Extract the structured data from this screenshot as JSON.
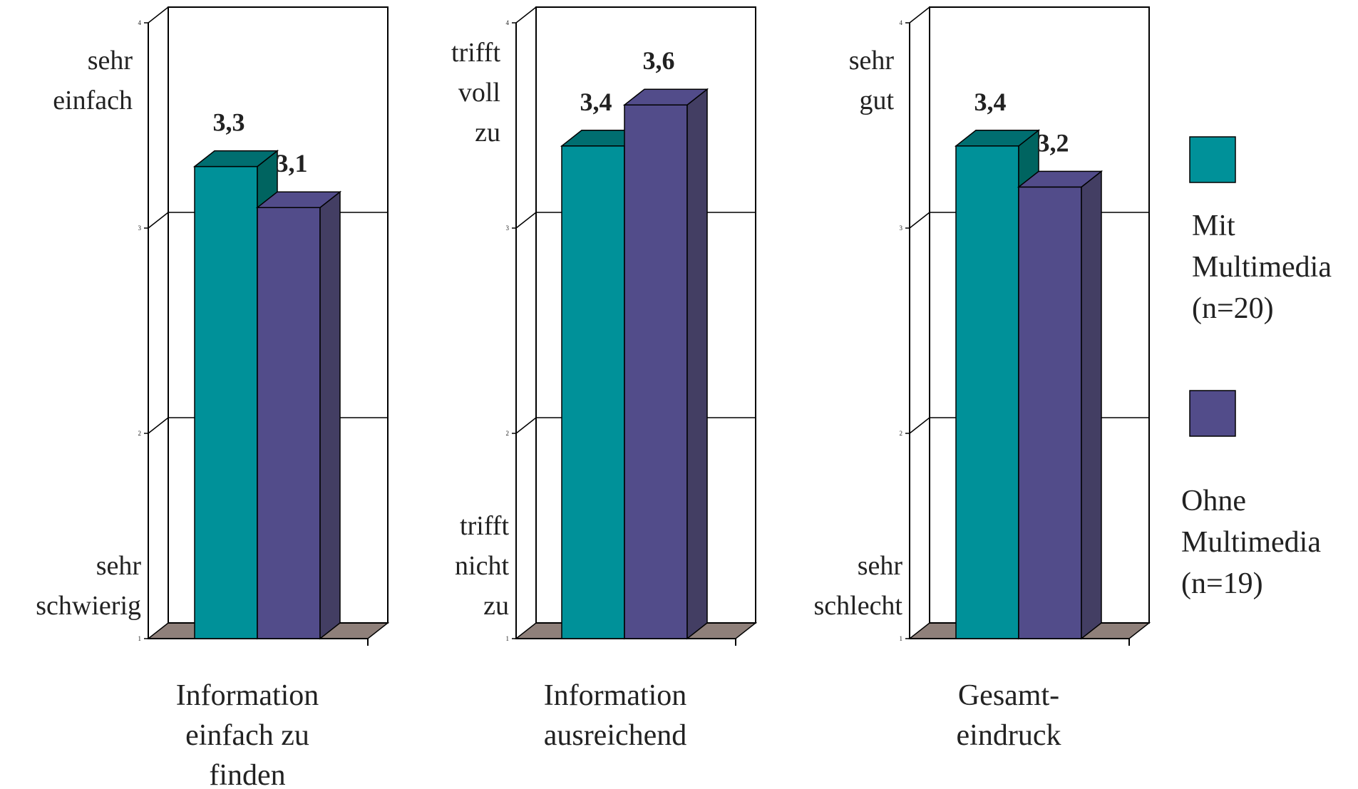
{
  "chart_data": {
    "type": "bar",
    "subtype": "3d-grouped-bar",
    "ylim": [
      1,
      4
    ],
    "yticks": [
      "1",
      "2",
      "3",
      "4"
    ],
    "grid": true,
    "legend_position": "right",
    "series": [
      {
        "name": "Mit Multimedia (n=20)",
        "legend_lines": [
          "Mit",
          "Multimedia",
          "(n=20)"
        ],
        "color": "#009199"
      },
      {
        "name": "Ohne Multimedia (n=19)",
        "legend_lines": [
          "Ohne",
          "Multimedia",
          "(n=19)"
        ],
        "color": "#524c8a"
      }
    ],
    "panels": [
      {
        "category_lines": [
          "Information",
          "einfach zu",
          "finden"
        ],
        "top_label_lines": [
          "sehr",
          "einfach"
        ],
        "bottom_label_lines": [
          "sehr",
          "schwierig"
        ],
        "values": [
          3.3,
          3.1
        ],
        "value_labels": [
          "3,3",
          "3,1"
        ]
      },
      {
        "category_lines": [
          "Information",
          "ausreichend"
        ],
        "top_label_lines": [
          "trifft",
          "voll",
          "zu"
        ],
        "bottom_label_lines": [
          "trifft",
          "nicht",
          "zu"
        ],
        "values": [
          3.4,
          3.6
        ],
        "value_labels": [
          "3,4",
          "3,6"
        ]
      },
      {
        "category_lines": [
          "Gesamt-",
          "eindruck"
        ],
        "top_label_lines": [
          "sehr",
          "gut"
        ],
        "bottom_label_lines": [
          "sehr",
          "schlecht"
        ],
        "values": [
          3.4,
          3.2
        ],
        "value_labels": [
          "3,4",
          "3,2"
        ]
      }
    ]
  },
  "colors": {
    "series_front": [
      "#009199",
      "#524c8a"
    ],
    "series_side": [
      "#006460",
      "#433e63"
    ],
    "series_top": [
      "#006e70",
      "#524c8a"
    ],
    "floor": "#8f807a",
    "grid": "#000000"
  }
}
